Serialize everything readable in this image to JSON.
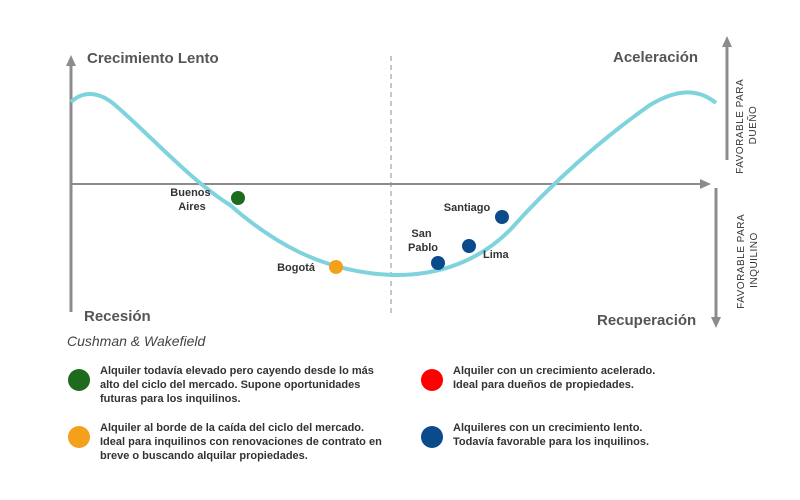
{
  "quadrants": {
    "top_left": "Crecimiento  Lento",
    "top_right": "Aceleración",
    "bottom_left": "Recesión",
    "bottom_right": "Recuperación"
  },
  "side_labels": {
    "owner": [
      "FAVORABLE  PARA",
      "DUEÑO"
    ],
    "tenant": [
      "FAVORABLE  PARA",
      "INQUILINO"
    ]
  },
  "cities": [
    {
      "name": [
        "Buenos",
        "Aires"
      ],
      "color": "#1e6b1e"
    },
    {
      "name": [
        "Bogotá"
      ],
      "color": "#f5a01a"
    },
    {
      "name": [
        "San",
        "Pablo"
      ],
      "color": "#0b4a8b"
    },
    {
      "name": [
        "Lima"
      ],
      "color": "#0b4a8b"
    },
    {
      "name": [
        "Santiago"
      ],
      "color": "#0b4a8b"
    }
  ],
  "source": "Cushman & Wakefield",
  "legend": [
    {
      "color": "#1e6b1e",
      "lines": [
        "Alquiler todavía elevado pero cayendo desde lo más",
        "alto del ciclo del mercado. Supone oportunidades",
        "futuras para los inquilinos."
      ]
    },
    {
      "color": "#ff0000",
      "lines": [
        "Alquiler con un crecimiento acelerado.",
        "Ideal para dueños de propiedades."
      ]
    },
    {
      "color": "#f5a01a",
      "lines": [
        "Alquiler al borde de la caída del ciclo del mercado.",
        "Ideal para inquilinos con renovaciones de contrato en",
        "breve o buscando alquilar propiedades."
      ]
    },
    {
      "color": "#0b4a8b",
      "lines": [
        "Alquileres con un crecimiento lento.",
        "Todavía favorable para los inquilinos."
      ]
    }
  ],
  "colors": {
    "curve": "#7fd3dc",
    "axis": "#8c8c8c"
  }
}
